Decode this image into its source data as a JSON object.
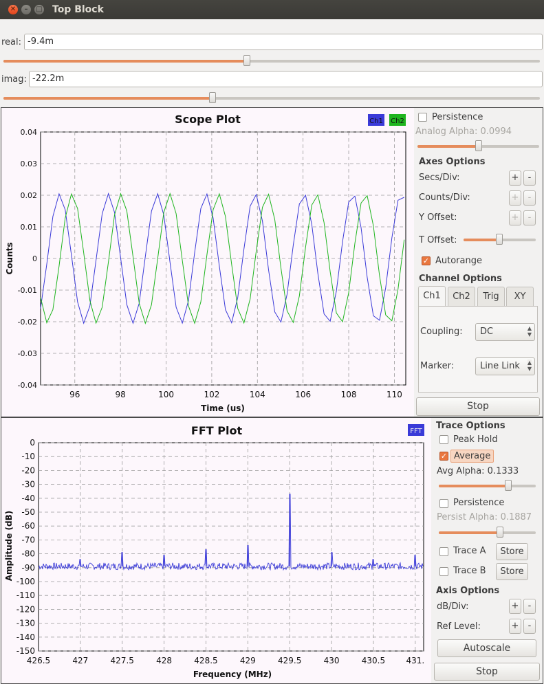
{
  "window": {
    "title": "Top Block"
  },
  "controls": {
    "real": {
      "label": "real:",
      "value": "-9.4m",
      "slider": 0.5
    },
    "imag": {
      "label": "imag:",
      "value": "-22.2m",
      "slider": 0.45
    }
  },
  "scope_panel": {
    "persistence_label": "Persistence",
    "persistence_checked": false,
    "analog_alpha_label": "Analog Alpha: 0.0994",
    "analog_alpha_slider": 0.5,
    "axes_options_title": "Axes Options",
    "secs_div_label": "Secs/Div:",
    "counts_div_label": "Counts/Div:",
    "y_offset_label": "Y Offset:",
    "t_offset_label": "T Offset:",
    "t_offset_slider": 0.5,
    "autorange_label": "Autorange",
    "autorange_checked": true,
    "channel_options_title": "Channel Options",
    "tabs": [
      "Ch1",
      "Ch2",
      "Trig",
      "XY"
    ],
    "coupling_label": "Coupling:",
    "coupling_value": "DC",
    "marker_label": "Marker:",
    "marker_value": "Line Link",
    "stop_label": "Stop",
    "plus": "+",
    "minus": "-"
  },
  "fft_panel": {
    "trace_options_title": "Trace Options",
    "peak_hold_label": "Peak Hold",
    "average_label": "Average",
    "average_checked": true,
    "avg_alpha_label": "Avg Alpha: 0.1333",
    "avg_alpha_slider": 0.72,
    "persistence_label": "Persistence",
    "persist_alpha_label": "Persist Alpha: 0.1887",
    "persist_alpha_slider": 0.63,
    "trace_a_label": "Trace A",
    "trace_b_label": "Trace B",
    "store_label": "Store",
    "axis_options_title": "Axis Options",
    "db_div_label": "dB/Div:",
    "ref_level_label": "Ref Level:",
    "autoscale_label": "Autoscale",
    "stop_label": "Stop"
  },
  "colors": {
    "ch1": "#3a3ad8",
    "ch2": "#1fb51f",
    "fft": "#3a3ad8",
    "plot_bg": "#fdf7fc",
    "accent": "#e58c5c"
  },
  "chart_data": [
    {
      "type": "line",
      "title": "Scope Plot",
      "xlabel": "Time (us)",
      "ylabel": "Counts",
      "xlim": [
        94.5,
        110.5
      ],
      "ylim": [
        -0.04,
        0.04
      ],
      "xticks": [
        96,
        98,
        100,
        102,
        104,
        106,
        108,
        110
      ],
      "yticks": [
        0.04,
        0.03,
        0.02,
        0.01,
        0,
        -0.01,
        -0.02,
        -0.03,
        -0.04
      ],
      "ytick_labels": [
        "0.04",
        "0.03",
        "0.02",
        "0.01",
        "0",
        "-0.01",
        "-0.02",
        "-0.03",
        "-0.04"
      ],
      "grid": true,
      "legend": [
        "Ch1",
        "Ch2"
      ],
      "series": [
        {
          "name": "Ch1",
          "amplitude": 0.0205,
          "period_us": 2.14,
          "phase_us": 94.8
        },
        {
          "name": "Ch2",
          "amplitude": 0.0205,
          "period_us": 2.14,
          "phase_us": 95.35
        }
      ]
    },
    {
      "type": "line",
      "title": "FFT Plot",
      "xlabel": "Frequency (MHz)",
      "ylabel": "Amplitude (dB)",
      "xlim": [
        426.5,
        431.1
      ],
      "ylim": [
        -150,
        0
      ],
      "xticks": [
        426.5,
        427,
        427.5,
        428,
        428.5,
        429,
        429.5,
        430,
        430.5,
        431
      ],
      "xtick_labels": [
        "426.5",
        "427",
        "427.5",
        "428",
        "428.5",
        "429",
        "429.5",
        "430",
        "430.5",
        "431."
      ],
      "yticks": [
        0,
        -10,
        -20,
        -30,
        -40,
        -50,
        -60,
        -70,
        -80,
        -90,
        -100,
        -110,
        -120,
        -130,
        -140,
        -150
      ],
      "grid": true,
      "legend": [
        "FFT"
      ],
      "noise_floor_db": -89,
      "peaks": [
        {
          "x": 427.5,
          "y": -79
        },
        {
          "x": 428.0,
          "y": -81
        },
        {
          "x": 428.5,
          "y": -77
        },
        {
          "x": 429.0,
          "y": -74
        },
        {
          "x": 429.5,
          "y": -37
        },
        {
          "x": 430.0,
          "y": -79
        },
        {
          "x": 431.0,
          "y": -81
        },
        {
          "x": 427.0,
          "y": -84
        },
        {
          "x": 430.5,
          "y": -84
        }
      ]
    }
  ]
}
